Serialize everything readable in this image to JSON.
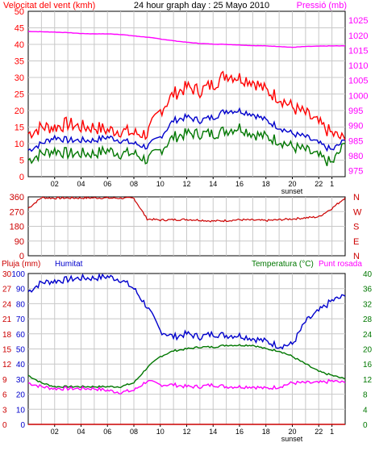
{
  "colors": {
    "wind": "#ff0000",
    "wind_avg": "#0000cc",
    "wind_min": "#007700",
    "pressure": "#ff00ff",
    "direction": "#cc0000",
    "rain": "#cc0000",
    "humidity": "#0000cc",
    "temperature": "#007700",
    "dewpoint": "#ff00ff",
    "grid": "#c8c8c8",
    "axis": "#000000"
  },
  "chart_data": [
    {
      "type": "line",
      "title": "24 hour graph day : 25 Mayo 2010",
      "ylabel": "Velocitat del vent (kmh)",
      "y2label": "Pressió (mb)",
      "x_ticks": [
        "02",
        "04",
        "06",
        "08",
        "10",
        "12",
        "14",
        "16",
        "18",
        "20",
        "22",
        "1"
      ],
      "x_annotation": "sunset",
      "ylim": [
        0,
        50
      ],
      "y_ticks": [
        "0",
        "5",
        "10",
        "15",
        "20",
        "25",
        "30",
        "35",
        "40",
        "45",
        "50"
      ],
      "y2lim": [
        973,
        1028
      ],
      "y2_ticks": [
        "975",
        "980",
        "985",
        "990",
        "995",
        "1000",
        "1005",
        "1010",
        "1015",
        "1020",
        "1025"
      ],
      "grid": true,
      "x": [
        0,
        1,
        2,
        3,
        4,
        5,
        6,
        7,
        8,
        9,
        10,
        11,
        12,
        13,
        14,
        15,
        16,
        17,
        18,
        19,
        20,
        21,
        22,
        23,
        24
      ],
      "series": [
        {
          "name": "wind_gust",
          "axis": "left",
          "values": [
            13,
            15,
            15,
            16,
            15,
            15,
            14,
            14,
            13,
            13,
            20,
            25,
            27,
            26,
            28,
            31,
            30,
            29,
            26,
            24,
            21,
            19,
            16,
            13,
            11
          ]
        },
        {
          "name": "wind_avg",
          "axis": "left",
          "values": [
            8,
            10,
            12,
            11,
            11,
            11,
            12,
            11,
            10,
            9,
            12,
            17,
            18,
            17,
            18,
            20,
            20,
            19,
            17,
            15,
            13,
            12,
            10,
            8,
            11
          ]
        },
        {
          "name": "wind_min",
          "axis": "left",
          "values": [
            5,
            7,
            8,
            7,
            7,
            7,
            8,
            7,
            7,
            5,
            8,
            12,
            13,
            13,
            13,
            14,
            15,
            13,
            12,
            11,
            9,
            8,
            6,
            4,
            10
          ]
        },
        {
          "name": "pressure",
          "axis": "right",
          "values": [
            1021.3,
            1021.2,
            1021.1,
            1020.9,
            1020.6,
            1020.5,
            1020.5,
            1020.3,
            1019.8,
            1019.4,
            1018.8,
            1018.2,
            1017.7,
            1017.3,
            1017.1,
            1017.0,
            1016.8,
            1016.6,
            1016.5,
            1016.3,
            1016.0,
            1016.3,
            1016.4,
            1016.5,
            1016.5
          ]
        }
      ]
    },
    {
      "type": "line",
      "ylim": [
        0,
        360
      ],
      "y_ticks": [
        "0",
        "90",
        "180",
        "270",
        "360"
      ],
      "y2_ticks": [
        "N",
        "W",
        "S",
        "E",
        "N"
      ],
      "grid": true,
      "x": [
        0,
        1,
        2,
        3,
        4,
        5,
        6,
        7,
        8,
        9,
        10,
        11,
        12,
        13,
        14,
        15,
        16,
        17,
        18,
        19,
        20,
        21,
        22,
        23,
        24
      ],
      "series": [
        {
          "name": "wind_direction",
          "values": [
            290,
            355,
            352,
            353,
            353,
            354,
            353,
            352,
            352,
            225,
            218,
            220,
            222,
            218,
            212,
            215,
            220,
            218,
            215,
            220,
            225,
            232,
            238,
            290,
            355
          ]
        }
      ]
    },
    {
      "type": "line",
      "ylabel": "Pluja (mm)",
      "ylabel2": "Humitat",
      "y2label": "Temperatura (°C)",
      "y2label2": "Punt rosada",
      "x_ticks": [
        "02",
        "04",
        "06",
        "08",
        "10",
        "12",
        "14",
        "16",
        "18",
        "20",
        "22",
        "1"
      ],
      "x_annotation": "sunset",
      "ylim_rain": [
        0,
        30
      ],
      "y_ticks_rain": [
        "0",
        "3",
        "6",
        "9",
        "12",
        "15",
        "18",
        "21",
        "24",
        "27",
        "30"
      ],
      "ylim_humidity": [
        0,
        100
      ],
      "y_ticks_humidity": [
        "0",
        "10",
        "20",
        "30",
        "40",
        "50",
        "60",
        "70",
        "80",
        "90",
        "100"
      ],
      "y2lim": [
        0,
        40
      ],
      "y2_ticks": [
        "0",
        "4",
        "8",
        "12",
        "16",
        "20",
        "24",
        "28",
        "32",
        "36",
        "40"
      ],
      "grid": true,
      "x": [
        0,
        1,
        2,
        3,
        4,
        5,
        6,
        7,
        8,
        9,
        10,
        11,
        12,
        13,
        14,
        15,
        16,
        17,
        18,
        19,
        20,
        21,
        22,
        23,
        24
      ],
      "series": [
        {
          "name": "rain",
          "axis": "rain",
          "values": [
            0,
            0,
            0,
            0,
            0,
            0,
            0,
            0,
            0,
            0,
            0,
            0,
            0,
            0,
            0,
            0,
            0,
            0,
            0,
            0,
            0,
            0,
            0,
            0,
            0
          ]
        },
        {
          "name": "humidity",
          "axis": "humidity",
          "values": [
            88,
            94,
            95,
            96,
            97,
            97,
            98,
            96,
            90,
            78,
            62,
            58,
            60,
            58,
            60,
            59,
            59,
            57,
            55,
            52,
            53,
            68,
            75,
            82,
            85
          ]
        },
        {
          "name": "temperature",
          "axis": "right",
          "values": [
            13,
            11,
            10,
            10,
            10,
            10,
            10,
            10,
            11,
            15,
            18,
            19.5,
            20,
            20.5,
            20.5,
            21,
            21,
            21,
            20,
            19.5,
            18,
            16,
            14,
            13,
            12
          ]
        },
        {
          "name": "dewpoint",
          "axis": "right",
          "values": [
            11,
            10,
            9.5,
            9.5,
            9.5,
            9.5,
            9,
            8.5,
            9,
            11.5,
            10.5,
            10.5,
            10,
            10,
            10.5,
            10,
            10,
            10,
            9.5,
            10,
            11,
            11,
            11,
            11.5,
            11
          ]
        }
      ]
    }
  ]
}
